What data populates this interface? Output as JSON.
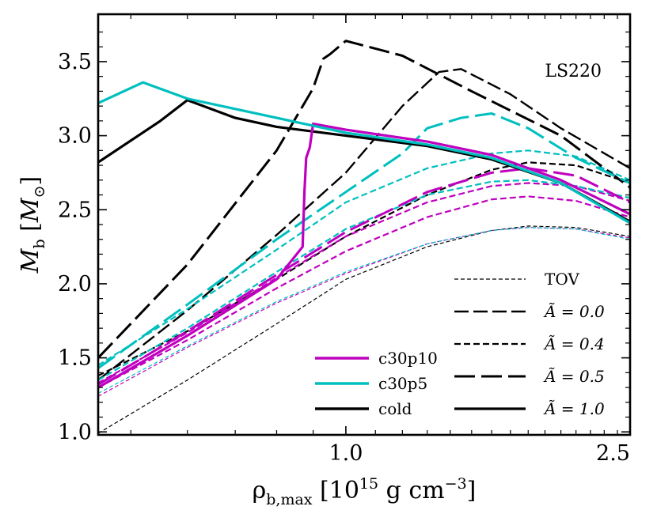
{
  "chart_data": {
    "type": "line",
    "xlabel": "ρb,max [10^15 g cm^-3]",
    "ylabel": "Mb [M⊙]",
    "xlim": [
      0.45,
      2.5
    ],
    "ylim": [
      0.98,
      3.82
    ],
    "x_scale": "log",
    "x_ticks": [
      {
        "value": 1.0,
        "label": "1.0"
      },
      {
        "value": 2.5,
        "label": "2.5"
      }
    ],
    "y_ticks": [
      {
        "value": 1.0,
        "label": "1.0"
      },
      {
        "value": 1.5,
        "label": "1.5"
      },
      {
        "value": 2.0,
        "label": "2.0"
      },
      {
        "value": 2.5,
        "label": "2.5"
      },
      {
        "value": 3.0,
        "label": "3.0"
      },
      {
        "value": 3.5,
        "label": "3.5"
      }
    ],
    "annotation": "LS220",
    "colors": {
      "c30p10": "#bf00bf",
      "c30p5": "#00bfbf",
      "cold": "#000000"
    },
    "legend_models": [
      {
        "label": "c30p10",
        "color": "#bf00bf"
      },
      {
        "label": "c30p5",
        "color": "#00bfbf"
      },
      {
        "label": "cold",
        "color": "#000000"
      }
    ],
    "legend_styles": [
      {
        "label": "TOV",
        "style": "tov"
      },
      {
        "label": "Ã = 0.0",
        "style": "a00"
      },
      {
        "label": "Ã = 0.4",
        "style": "a04"
      },
      {
        "label": "Ã = 0.5",
        "style": "a05"
      },
      {
        "label": "Ã = 1.0",
        "style": "a10"
      }
    ],
    "series": [
      {
        "model": "cold",
        "style": "tov",
        "points": [
          [
            0.45,
            0.99
          ],
          [
            0.6,
            1.35
          ],
          [
            0.8,
            1.73
          ],
          [
            1.0,
            2.03
          ],
          [
            1.3,
            2.25
          ],
          [
            1.6,
            2.36
          ],
          [
            1.8,
            2.39
          ],
          [
            2.1,
            2.38
          ],
          [
            2.5,
            2.32
          ]
        ]
      },
      {
        "model": "c30p10",
        "style": "tov",
        "points": [
          [
            0.45,
            1.24
          ],
          [
            0.6,
            1.57
          ],
          [
            0.8,
            1.87
          ],
          [
            1.0,
            2.07
          ],
          [
            1.3,
            2.27
          ],
          [
            1.6,
            2.36
          ],
          [
            1.8,
            2.38
          ],
          [
            2.1,
            2.37
          ],
          [
            2.5,
            2.31
          ]
        ]
      },
      {
        "model": "c30p5",
        "style": "tov",
        "points": [
          [
            0.45,
            1.26
          ],
          [
            0.6,
            1.58
          ],
          [
            0.8,
            1.88
          ],
          [
            1.0,
            2.08
          ],
          [
            1.3,
            2.27
          ],
          [
            1.6,
            2.36
          ],
          [
            1.8,
            2.38
          ],
          [
            2.1,
            2.37
          ],
          [
            2.5,
            2.3
          ]
        ]
      },
      {
        "model": "cold",
        "style": "a00",
        "points": [
          [
            0.45,
            1.35
          ],
          [
            0.6,
            1.82
          ],
          [
            0.8,
            2.33
          ],
          [
            1.0,
            2.75
          ],
          [
            1.2,
            3.2
          ],
          [
            1.35,
            3.43
          ],
          [
            1.45,
            3.45
          ],
          [
            1.7,
            3.28
          ],
          [
            2.0,
            3.05
          ],
          [
            2.5,
            2.78
          ]
        ]
      },
      {
        "model": "cold",
        "style": "a04",
        "points": [
          [
            0.45,
            1.38
          ],
          [
            0.6,
            1.68
          ],
          [
            0.8,
            2.03
          ],
          [
            1.0,
            2.32
          ],
          [
            1.3,
            2.6
          ],
          [
            1.6,
            2.77
          ],
          [
            1.8,
            2.82
          ],
          [
            2.1,
            2.8
          ],
          [
            2.5,
            2.68
          ]
        ]
      },
      {
        "model": "c30p10",
        "style": "a04",
        "points": [
          [
            0.45,
            1.3
          ],
          [
            0.6,
            1.62
          ],
          [
            0.8,
            1.97
          ],
          [
            1.0,
            2.22
          ],
          [
            1.3,
            2.45
          ],
          [
            1.6,
            2.57
          ],
          [
            1.8,
            2.59
          ],
          [
            2.1,
            2.56
          ],
          [
            2.5,
            2.45
          ]
        ]
      },
      {
        "model": "c30p10",
        "style": "a04",
        "points": [
          [
            0.45,
            1.33
          ],
          [
            0.6,
            1.67
          ],
          [
            0.8,
            2.04
          ],
          [
            1.0,
            2.32
          ],
          [
            1.3,
            2.55
          ],
          [
            1.6,
            2.66
          ],
          [
            1.8,
            2.68
          ],
          [
            2.1,
            2.66
          ],
          [
            2.5,
            2.56
          ]
        ]
      },
      {
        "model": "c30p5",
        "style": "a04",
        "points": [
          [
            0.45,
            1.35
          ],
          [
            0.6,
            1.7
          ],
          [
            0.8,
            2.08
          ],
          [
            1.0,
            2.37
          ],
          [
            1.3,
            2.6
          ],
          [
            1.6,
            2.69
          ],
          [
            1.8,
            2.7
          ],
          [
            2.1,
            2.66
          ],
          [
            2.5,
            2.58
          ]
        ]
      },
      {
        "model": "c30p5",
        "style": "a04",
        "points": [
          [
            0.45,
            1.45
          ],
          [
            0.6,
            1.83
          ],
          [
            0.8,
            2.23
          ],
          [
            1.0,
            2.55
          ],
          [
            1.3,
            2.78
          ],
          [
            1.6,
            2.88
          ],
          [
            1.8,
            2.9
          ],
          [
            2.1,
            2.86
          ],
          [
            2.5,
            2.7
          ]
        ]
      },
      {
        "model": "cold",
        "style": "a05",
        "points": [
          [
            0.45,
            1.5
          ],
          [
            0.6,
            2.13
          ],
          [
            0.8,
            2.9
          ],
          [
            0.9,
            3.32
          ],
          [
            0.93,
            3.52
          ],
          [
            0.95,
            3.55
          ],
          [
            1.0,
            3.64
          ],
          [
            1.2,
            3.54
          ],
          [
            1.5,
            3.3
          ],
          [
            2.0,
            3.0
          ],
          [
            2.5,
            2.65
          ]
        ]
      },
      {
        "model": "c30p10",
        "style": "a05",
        "points": [
          [
            0.45,
            1.32
          ],
          [
            0.6,
            1.68
          ],
          [
            0.8,
            2.06
          ],
          [
            1.0,
            2.35
          ],
          [
            1.3,
            2.62
          ],
          [
            1.6,
            2.75
          ],
          [
            1.8,
            2.78
          ],
          [
            2.1,
            2.73
          ],
          [
            2.5,
            2.55
          ]
        ]
      },
      {
        "model": "c30p5",
        "style": "a05",
        "points": [
          [
            0.45,
            1.43
          ],
          [
            0.6,
            1.86
          ],
          [
            0.8,
            2.3
          ],
          [
            1.0,
            2.62
          ],
          [
            1.2,
            2.88
          ],
          [
            1.3,
            3.05
          ],
          [
            1.45,
            3.12
          ],
          [
            1.6,
            3.15
          ],
          [
            1.8,
            3.05
          ],
          [
            2.1,
            2.85
          ],
          [
            2.5,
            2.68
          ]
        ]
      },
      {
        "model": "cold",
        "style": "a10",
        "points": [
          [
            0.45,
            2.82
          ],
          [
            0.55,
            3.1
          ],
          [
            0.6,
            3.24
          ],
          [
            0.7,
            3.12
          ],
          [
            0.8,
            3.06
          ],
          [
            1.0,
            3.0
          ],
          [
            1.3,
            2.93
          ],
          [
            1.6,
            2.84
          ],
          [
            2.0,
            2.68
          ],
          [
            2.5,
            2.42
          ]
        ]
      },
      {
        "model": "c30p10",
        "style": "a10",
        "points": [
          [
            0.45,
            1.3
          ],
          [
            0.6,
            1.65
          ],
          [
            0.8,
            2.03
          ],
          [
            0.87,
            2.25
          ],
          [
            0.875,
            2.62
          ],
          [
            0.88,
            2.85
          ],
          [
            0.89,
            2.92
          ],
          [
            0.9,
            3.08
          ],
          [
            1.0,
            3.04
          ],
          [
            1.3,
            2.96
          ],
          [
            1.6,
            2.87
          ],
          [
            2.0,
            2.7
          ],
          [
            2.5,
            2.47
          ]
        ]
      },
      {
        "model": "c30p5",
        "style": "a10",
        "points": [
          [
            0.45,
            3.22
          ],
          [
            0.52,
            3.36
          ],
          [
            0.6,
            3.25
          ],
          [
            0.8,
            3.12
          ],
          [
            1.0,
            3.02
          ],
          [
            1.3,
            2.94
          ],
          [
            1.6,
            2.85
          ],
          [
            2.0,
            2.68
          ],
          [
            2.5,
            2.41
          ]
        ]
      }
    ]
  }
}
